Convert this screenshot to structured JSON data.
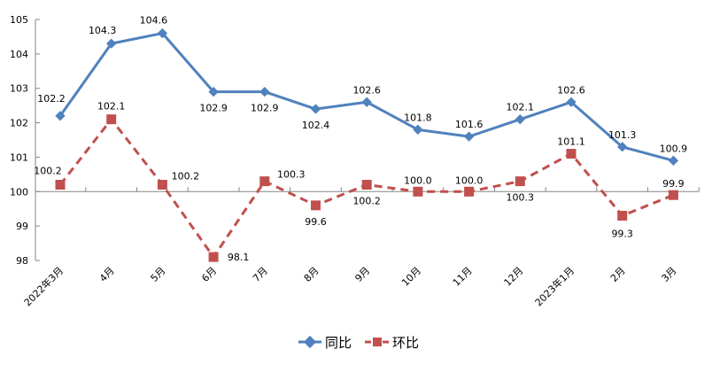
{
  "chart_data": {
    "type": "line",
    "title": "",
    "xlabel": "",
    "ylabel": "",
    "ylim": [
      98,
      105
    ],
    "yticks": [
      98,
      99,
      100,
      101,
      102,
      103,
      104,
      105
    ],
    "x_axis_crosses_at": 100,
    "grid": false,
    "legend_position": "bottom",
    "categories": [
      "2022年3月",
      "4月",
      "5月",
      "6月",
      "7月",
      "8月",
      "9月",
      "10月",
      "11月",
      "12月",
      "2023年1月",
      "2月",
      "3月"
    ],
    "series": [
      {
        "name": "同比",
        "color": "#4F81BD",
        "marker": "diamond",
        "line_style": "solid",
        "values": [
          102.2,
          104.3,
          104.6,
          102.9,
          102.9,
          102.4,
          102.6,
          101.8,
          101.6,
          102.1,
          102.6,
          101.3,
          100.9
        ],
        "labels": [
          "102.2",
          "104.3",
          "104.6",
          "102.9",
          "102.9",
          "102.4",
          "102.6",
          "101.8",
          "101.6",
          "102.1",
          "102.6",
          "101.3",
          "100.9"
        ]
      },
      {
        "name": "环比",
        "color": "#C0504D",
        "marker": "square",
        "line_style": "dashed",
        "values": [
          100.2,
          102.1,
          100.2,
          98.1,
          100.3,
          99.6,
          100.2,
          100.0,
          100.0,
          100.3,
          101.1,
          99.3,
          99.9
        ],
        "labels": [
          "100.2",
          "102.1",
          "100.2",
          "98.1",
          "100.3",
          "99.6",
          "100.2",
          "100.0",
          "100.0",
          "100.3",
          "101.1",
          "99.3",
          "99.9"
        ]
      }
    ]
  },
  "legend": {
    "items": [
      {
        "label": "同比"
      },
      {
        "label": "环比"
      }
    ]
  }
}
